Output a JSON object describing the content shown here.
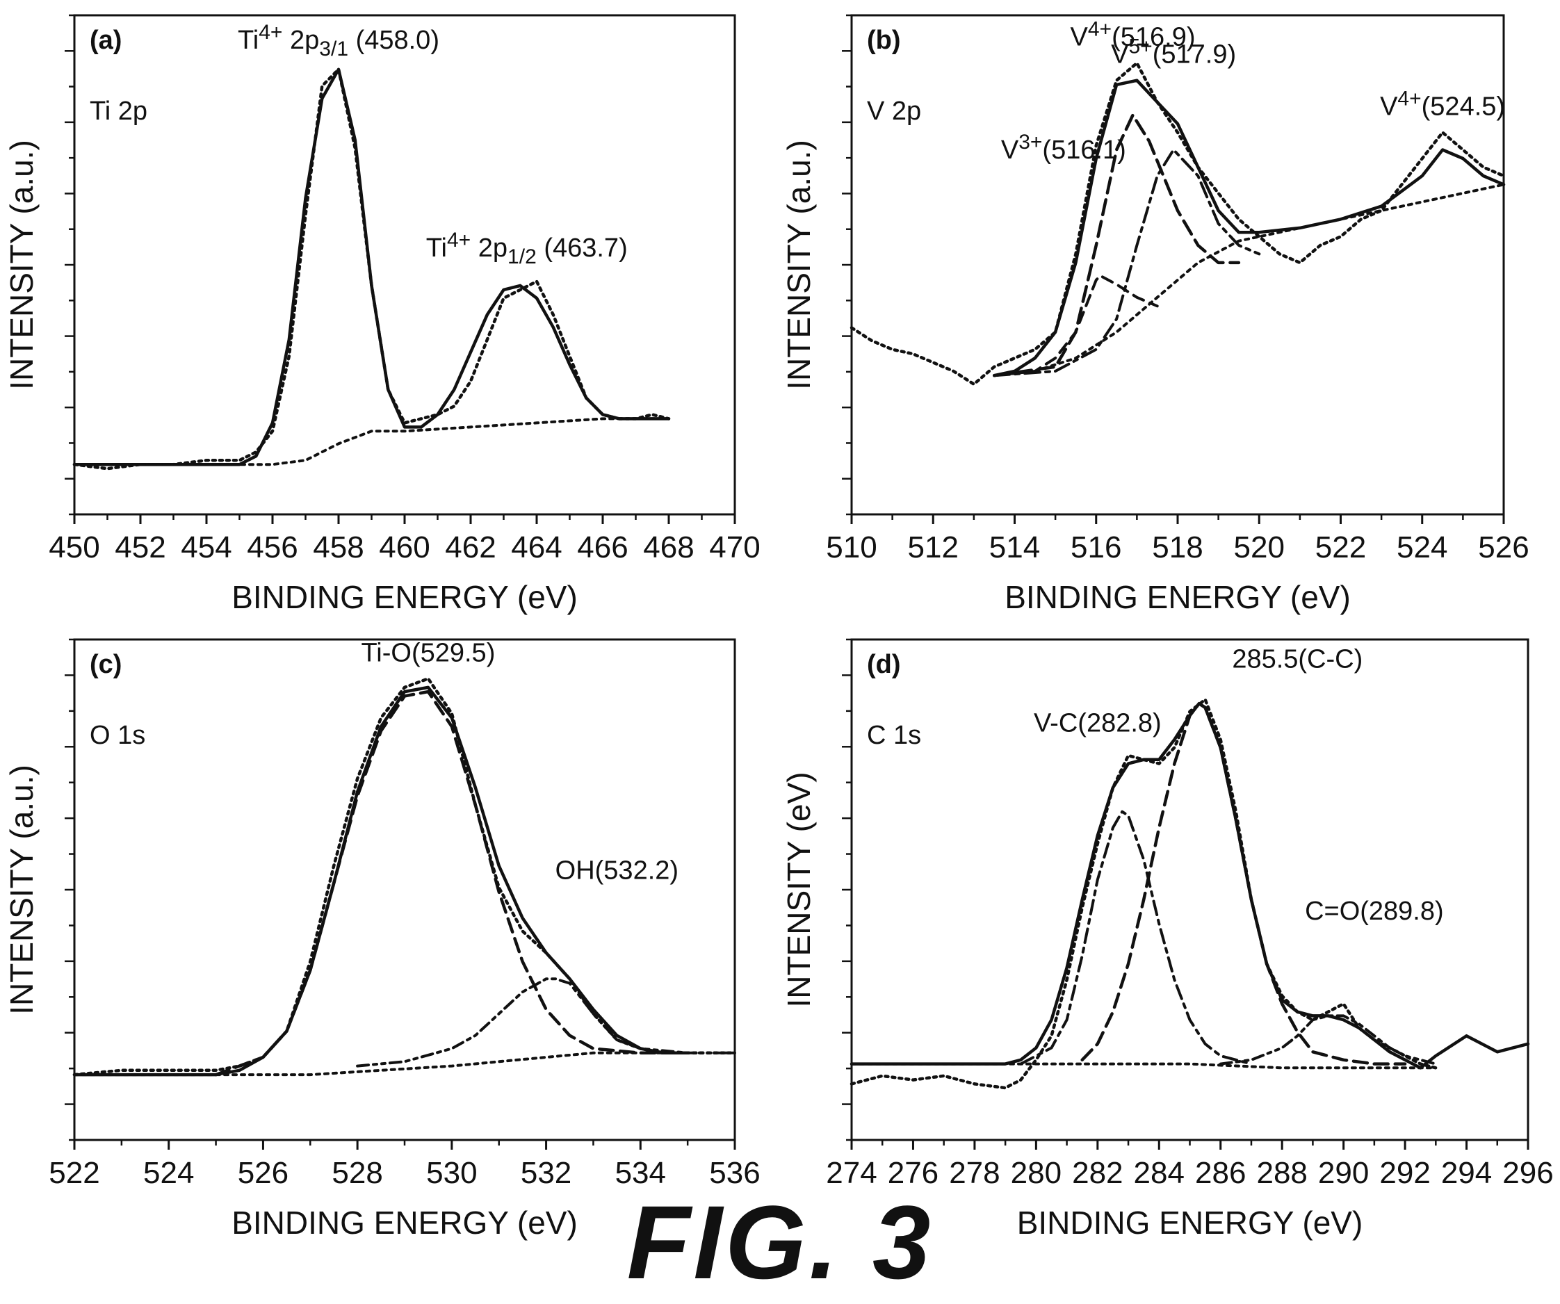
{
  "figure": {
    "caption": "FIG. 3"
  },
  "chart_data": [
    {
      "type": "line",
      "panel": "(a)",
      "element": "Ti 2p",
      "xlabel": "BINDING ENERGY (eV)",
      "ylabel": "INTENSITY (a.u.)",
      "xlim": [
        450,
        470
      ],
      "xticks": [
        450,
        452,
        454,
        456,
        458,
        460,
        462,
        464,
        466,
        468,
        470
      ],
      "ylim": [
        -0.1,
        1.1
      ],
      "series": [
        {
          "style": "raw",
          "x": [
            450,
            451,
            452,
            453,
            454,
            455,
            455.5,
            456,
            456.5,
            457,
            457.5,
            458,
            458.5,
            459,
            459.5,
            460,
            460.5,
            461,
            461.5,
            462,
            462.5,
            463,
            463.5,
            464,
            464.5,
            465,
            465.5,
            466,
            466.5,
            467,
            467.5,
            468
          ],
          "y": [
            0.02,
            0.01,
            0.02,
            0.02,
            0.03,
            0.03,
            0.05,
            0.1,
            0.28,
            0.62,
            0.93,
            0.97,
            0.78,
            0.45,
            0.2,
            0.12,
            0.13,
            0.14,
            0.16,
            0.22,
            0.32,
            0.42,
            0.44,
            0.46,
            0.38,
            0.28,
            0.18,
            0.14,
            0.13,
            0.13,
            0.14,
            0.13
          ]
        },
        {
          "style": "fit",
          "x": [
            450,
            452,
            454,
            455,
            455.5,
            456,
            456.5,
            457,
            457.5,
            458,
            458.5,
            459,
            459.5,
            460,
            460.5,
            461,
            461.5,
            462,
            462.5,
            463,
            463.5,
            464,
            464.5,
            465,
            465.5,
            466,
            466.5,
            467,
            468
          ],
          "y": [
            0.02,
            0.02,
            0.02,
            0.02,
            0.04,
            0.12,
            0.32,
            0.66,
            0.9,
            0.97,
            0.8,
            0.45,
            0.2,
            0.11,
            0.11,
            0.14,
            0.2,
            0.29,
            0.38,
            0.44,
            0.45,
            0.42,
            0.35,
            0.26,
            0.18,
            0.14,
            0.13,
            0.13,
            0.13
          ]
        },
        {
          "style": "background",
          "x": [
            450,
            454,
            456,
            457,
            458,
            459,
            460,
            462,
            464,
            466,
            468
          ],
          "y": [
            0.02,
            0.02,
            0.02,
            0.03,
            0.07,
            0.1,
            0.1,
            0.11,
            0.12,
            0.13,
            0.13
          ]
        }
      ],
      "annotations": [
        {
          "parts": [
            "Ti",
            "4+",
            " 2p",
            "3/1",
            " (458.0)"
          ],
          "x": 458.0,
          "y": 1.02,
          "anchor": "start-left"
        },
        {
          "parts": [
            "Ti",
            "4+",
            " 2p",
            "1/2",
            " (463.7)"
          ],
          "x": 463.7,
          "y": 0.52,
          "anchor": "center"
        }
      ]
    },
    {
      "type": "line",
      "panel": "(b)",
      "element": "V 2p",
      "xlabel": "BINDING ENERGY (eV)",
      "ylabel": "INTENSITY (a.u.)",
      "xlim": [
        510,
        526
      ],
      "xticks": [
        510,
        512,
        514,
        516,
        518,
        520,
        522,
        524,
        526
      ],
      "ylim": [
        0,
        1.15
      ],
      "series": [
        {
          "style": "raw",
          "x": [
            510,
            510.5,
            511,
            511.5,
            512,
            512.5,
            513,
            513.5,
            514,
            514.5,
            515,
            515.5,
            516,
            516.5,
            517,
            517.5,
            518,
            518.5,
            519,
            519.5,
            520,
            520.5,
            521,
            521.5,
            522,
            522.5,
            523,
            523.5,
            524,
            524.5,
            525,
            525.5,
            526
          ],
          "y": [
            0.43,
            0.4,
            0.38,
            0.37,
            0.35,
            0.33,
            0.3,
            0.34,
            0.36,
            0.38,
            0.42,
            0.6,
            0.85,
            1.0,
            1.04,
            0.95,
            0.88,
            0.8,
            0.74,
            0.68,
            0.64,
            0.6,
            0.58,
            0.62,
            0.64,
            0.68,
            0.7,
            0.76,
            0.82,
            0.88,
            0.84,
            0.8,
            0.78
          ]
        },
        {
          "style": "fit",
          "x": [
            513.5,
            514,
            514.5,
            515,
            515.5,
            516,
            516.5,
            517,
            517.5,
            518,
            518.5,
            519,
            519.5,
            520,
            521,
            522,
            523,
            524,
            524.5,
            525,
            525.5,
            526
          ],
          "y": [
            0.32,
            0.33,
            0.36,
            0.42,
            0.58,
            0.82,
            0.99,
            1.0,
            0.95,
            0.9,
            0.8,
            0.7,
            0.65,
            0.65,
            0.66,
            0.68,
            0.71,
            0.78,
            0.84,
            0.82,
            0.78,
            0.76
          ]
        },
        {
          "style": "component-V3+",
          "x": [
            513.5,
            514.5,
            515,
            515.5,
            516,
            516.1,
            516.5,
            517,
            517.5
          ],
          "y": [
            0.32,
            0.33,
            0.36,
            0.42,
            0.54,
            0.55,
            0.53,
            0.5,
            0.48
          ]
        },
        {
          "style": "component-V4+",
          "x": [
            513.5,
            515,
            515.5,
            516,
            516.5,
            516.9,
            517.3,
            518,
            518.5,
            519,
            519.5
          ],
          "y": [
            0.32,
            0.34,
            0.42,
            0.62,
            0.84,
            0.92,
            0.86,
            0.7,
            0.62,
            0.58,
            0.58
          ]
        },
        {
          "style": "component-V5+",
          "x": [
            513.5,
            515,
            516,
            516.5,
            517,
            517.5,
            517.9,
            518.5,
            519,
            519.5,
            520
          ],
          "y": [
            0.32,
            0.33,
            0.38,
            0.45,
            0.62,
            0.78,
            0.84,
            0.78,
            0.67,
            0.62,
            0.6
          ]
        },
        {
          "style": "background",
          "x": [
            513.5,
            514.5,
            515.5,
            516.5,
            517.5,
            518.5,
            519.5,
            520.5,
            521.5,
            522.5,
            523.5,
            524.5,
            525.5,
            526
          ],
          "y": [
            0.32,
            0.33,
            0.36,
            0.42,
            0.5,
            0.58,
            0.63,
            0.65,
            0.67,
            0.69,
            0.71,
            0.73,
            0.75,
            0.76
          ]
        }
      ],
      "annotations": [
        {
          "parts": [
            "V",
            "4+",
            "(516.9)"
          ],
          "x": 516.9,
          "y": 1.08,
          "anchor": "center"
        },
        {
          "parts": [
            "V",
            "5+",
            "(517.9)"
          ],
          "x": 517.9,
          "y": 1.04,
          "anchor": "center"
        },
        {
          "parts": [
            "V",
            "3+",
            "(516.1)"
          ],
          "x": 515.2,
          "y": 0.82,
          "anchor": "center"
        },
        {
          "parts": [
            "V",
            "4+",
            "(524.5)"
          ],
          "x": 524.5,
          "y": 0.92,
          "anchor": "center"
        }
      ]
    },
    {
      "type": "line",
      "panel": "(c)",
      "element": "O 1s",
      "xlabel": "BINDING ENERGY (eV)",
      "ylabel": "INTENSITY (a.u.)",
      "xlim": [
        522,
        536
      ],
      "xticks": [
        522,
        524,
        526,
        528,
        530,
        532,
        534,
        536
      ],
      "ylim": [
        -0.05,
        1.1
      ],
      "series": [
        {
          "style": "raw",
          "x": [
            522,
            523,
            524,
            525,
            525.5,
            526,
            526.5,
            527,
            527.5,
            528,
            528.5,
            529,
            529.5,
            530,
            530.5,
            531,
            531.5,
            532,
            532.5,
            533,
            533.5,
            534,
            534.5,
            535,
            535.5,
            536
          ],
          "y": [
            0.1,
            0.11,
            0.11,
            0.11,
            0.12,
            0.14,
            0.2,
            0.36,
            0.58,
            0.78,
            0.92,
            0.99,
            1.01,
            0.93,
            0.72,
            0.53,
            0.43,
            0.38,
            0.32,
            0.24,
            0.18,
            0.16,
            0.15,
            0.15,
            0.15,
            0.15
          ]
        },
        {
          "style": "fit",
          "x": [
            522,
            525,
            525.5,
            526,
            526.5,
            527,
            527.5,
            528,
            528.5,
            529,
            529.5,
            530,
            530.5,
            531,
            531.5,
            532,
            532.5,
            533,
            533.5,
            534,
            534.5,
            535
          ],
          "y": [
            0.1,
            0.1,
            0.11,
            0.14,
            0.2,
            0.34,
            0.54,
            0.75,
            0.9,
            0.98,
            0.99,
            0.92,
            0.76,
            0.58,
            0.46,
            0.38,
            0.32,
            0.25,
            0.19,
            0.16,
            0.15,
            0.15
          ]
        },
        {
          "style": "component-TiO",
          "x": [
            525,
            526,
            526.5,
            527,
            527.5,
            528,
            528.5,
            529,
            529.5,
            530,
            530.5,
            531,
            531.5,
            532,
            532.5,
            533,
            534,
            535
          ],
          "y": [
            0.1,
            0.14,
            0.2,
            0.34,
            0.54,
            0.74,
            0.89,
            0.97,
            0.98,
            0.9,
            0.72,
            0.52,
            0.36,
            0.25,
            0.19,
            0.16,
            0.15,
            0.15
          ]
        },
        {
          "style": "component-OH",
          "x": [
            528,
            529,
            530,
            530.5,
            531,
            531.5,
            532,
            532.2,
            532.5,
            533,
            533.5,
            534,
            535
          ],
          "y": [
            0.12,
            0.13,
            0.16,
            0.19,
            0.24,
            0.29,
            0.32,
            0.32,
            0.31,
            0.24,
            0.18,
            0.16,
            0.15
          ]
        },
        {
          "style": "background",
          "x": [
            522,
            525,
            527,
            528.5,
            530,
            531,
            532,
            533,
            534,
            535,
            536
          ],
          "y": [
            0.1,
            0.1,
            0.1,
            0.11,
            0.12,
            0.13,
            0.14,
            0.15,
            0.15,
            0.15,
            0.15
          ]
        }
      ],
      "annotations": [
        {
          "parts": [
            "Ti-O(529.5)"
          ],
          "x": 529.5,
          "y": 1.05,
          "anchor": "center"
        },
        {
          "parts": [
            "OH(532.2)"
          ],
          "x": 533.5,
          "y": 0.55,
          "anchor": "center"
        }
      ]
    },
    {
      "type": "line",
      "panel": "(d)",
      "element": "C 1s",
      "xlabel": "BINDING ENERGY (eV)",
      "ylabel": "INTENSITY (eV)",
      "xlim": [
        274,
        296
      ],
      "xticks": [
        274,
        276,
        278,
        280,
        282,
        284,
        286,
        288,
        290,
        292,
        294,
        296
      ],
      "ylim": [
        -0.1,
        1.15
      ],
      "series": [
        {
          "style": "raw",
          "x": [
            274,
            275,
            276,
            277,
            278,
            279,
            279.5,
            280,
            280.5,
            281,
            281.5,
            282,
            282.5,
            283,
            283.5,
            284,
            284.5,
            285,
            285.5,
            286,
            286.5,
            287,
            287.5,
            288,
            288.5,
            289,
            289.5,
            290,
            290.5,
            291,
            291.5,
            292,
            292.5,
            293
          ],
          "y": [
            0.04,
            0.06,
            0.05,
            0.06,
            0.04,
            0.03,
            0.05,
            0.1,
            0.16,
            0.3,
            0.48,
            0.64,
            0.78,
            0.86,
            0.85,
            0.84,
            0.88,
            0.97,
            1.0,
            0.9,
            0.72,
            0.5,
            0.34,
            0.26,
            0.22,
            0.2,
            0.22,
            0.24,
            0.18,
            0.15,
            0.13,
            0.11,
            0.09,
            0.08
          ]
        },
        {
          "style": "fit",
          "x": [
            274,
            276,
            278,
            279,
            279.5,
            280,
            280.5,
            281,
            281.5,
            282,
            282.5,
            283,
            283.5,
            284,
            284.5,
            285,
            285.3,
            285.5,
            286,
            286.5,
            287,
            287.5,
            288,
            288.5,
            289,
            289.5,
            290,
            290.5,
            291,
            291.5,
            292,
            292.5,
            293,
            294,
            295,
            296
          ],
          "y": [
            0.09,
            0.09,
            0.09,
            0.09,
            0.1,
            0.13,
            0.2,
            0.33,
            0.5,
            0.66,
            0.78,
            0.84,
            0.85,
            0.85,
            0.9,
            0.96,
            0.99,
            0.98,
            0.88,
            0.7,
            0.5,
            0.34,
            0.25,
            0.22,
            0.21,
            0.21,
            0.2,
            0.18,
            0.15,
            0.12,
            0.1,
            0.08,
            0.11,
            0.16,
            0.12,
            0.14
          ]
        },
        {
          "style": "component-VC",
          "x": [
            279.5,
            280.5,
            281,
            281.5,
            282,
            282.5,
            282.8,
            283,
            283.5,
            284,
            284.5,
            285,
            285.5,
            286,
            287
          ],
          "y": [
            0.09,
            0.13,
            0.2,
            0.36,
            0.55,
            0.68,
            0.72,
            0.71,
            0.6,
            0.44,
            0.3,
            0.2,
            0.14,
            0.11,
            0.09
          ]
        },
        {
          "style": "component-CC",
          "x": [
            281.5,
            282,
            282.5,
            283,
            283.5,
            284,
            284.5,
            285,
            285.3,
            285.5,
            286,
            286.5,
            287,
            287.5,
            288,
            288.5,
            289,
            290,
            291,
            292
          ],
          "y": [
            0.1,
            0.14,
            0.22,
            0.34,
            0.5,
            0.68,
            0.84,
            0.96,
            0.99,
            0.98,
            0.88,
            0.7,
            0.5,
            0.34,
            0.24,
            0.17,
            0.12,
            0.1,
            0.09,
            0.09
          ]
        },
        {
          "style": "component-CO",
          "x": [
            286,
            287,
            288,
            288.5,
            289,
            289.5,
            289.8,
            290,
            290.5,
            291,
            291.5,
            292,
            293
          ],
          "y": [
            0.09,
            0.1,
            0.13,
            0.16,
            0.2,
            0.21,
            0.21,
            0.21,
            0.19,
            0.16,
            0.13,
            0.11,
            0.09
          ]
        },
        {
          "style": "background",
          "x": [
            274,
            279,
            282,
            285,
            288,
            291,
            293
          ],
          "y": [
            0.09,
            0.09,
            0.09,
            0.09,
            0.08,
            0.08,
            0.08
          ]
        }
      ],
      "annotations": [
        {
          "parts": [
            "285.5(C-C)"
          ],
          "x": 288.5,
          "y": 1.08,
          "anchor": "center"
        },
        {
          "parts": [
            "V-C(282.8)"
          ],
          "x": 282,
          "y": 0.92,
          "anchor": "center"
        },
        {
          "parts": [
            "C=O(289.8)"
          ],
          "x": 291,
          "y": 0.45,
          "anchor": "center"
        }
      ]
    }
  ]
}
